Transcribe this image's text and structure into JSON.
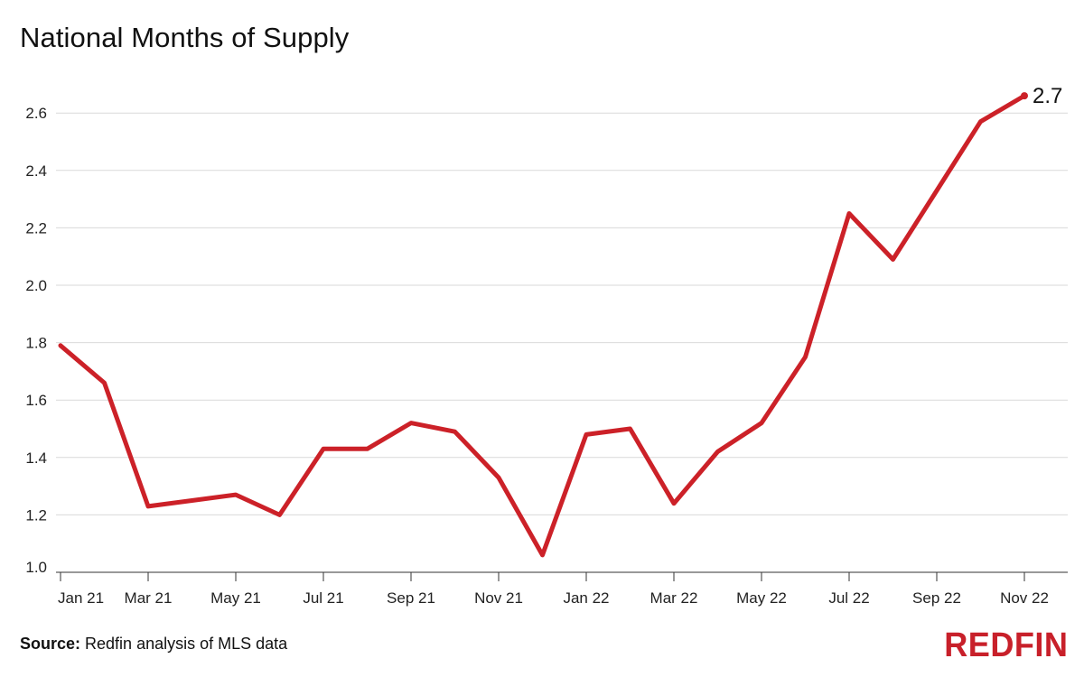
{
  "title": "National Months of Supply",
  "source": {
    "label": "Source:",
    "text": " Redfin analysis of MLS data"
  },
  "brand": {
    "logo_text": "REDFIN",
    "color": "#c8202a"
  },
  "colors": {
    "line": "#cc2128",
    "grid": "#d9d9d9",
    "axis": "#333333",
    "text": "#222222"
  },
  "chart_data": {
    "type": "line",
    "title": "National Months of Supply",
    "xlabel": "",
    "ylabel": "",
    "ylim": [
      1.0,
      2.7
    ],
    "yticks": [
      "1.0",
      "1.2",
      "1.4",
      "1.6",
      "1.8",
      "2.0",
      "2.2",
      "2.4",
      "2.6"
    ],
    "grid": true,
    "x": [
      "Jan 21",
      "Feb 21",
      "Mar 21",
      "Apr 21",
      "May 21",
      "Jun 21",
      "Jul 21",
      "Aug 21",
      "Sep 21",
      "Oct 21",
      "Nov 21",
      "Dec 21",
      "Jan 22",
      "Feb 22",
      "Mar 22",
      "Apr 22",
      "May 22",
      "Jun 22",
      "Jul 22",
      "Aug 22",
      "Sep 22",
      "Oct 22",
      "Nov 22"
    ],
    "xtick_labels": [
      "Jan 21",
      "Mar 21",
      "May 21",
      "Jul 21",
      "Sep 21",
      "Nov 21",
      "Jan 22",
      "Mar 22",
      "May 22",
      "Jul 22",
      "Sep 22",
      "Nov 22"
    ],
    "series": [
      {
        "values": [
          1.79,
          1.66,
          1.23,
          1.25,
          1.27,
          1.2,
          1.43,
          1.43,
          1.52,
          1.49,
          1.33,
          1.06,
          1.48,
          1.5,
          1.24,
          1.42,
          1.52,
          1.75,
          2.25,
          2.09,
          2.33,
          2.57,
          2.66
        ]
      }
    ],
    "end_label": "2.7"
  }
}
